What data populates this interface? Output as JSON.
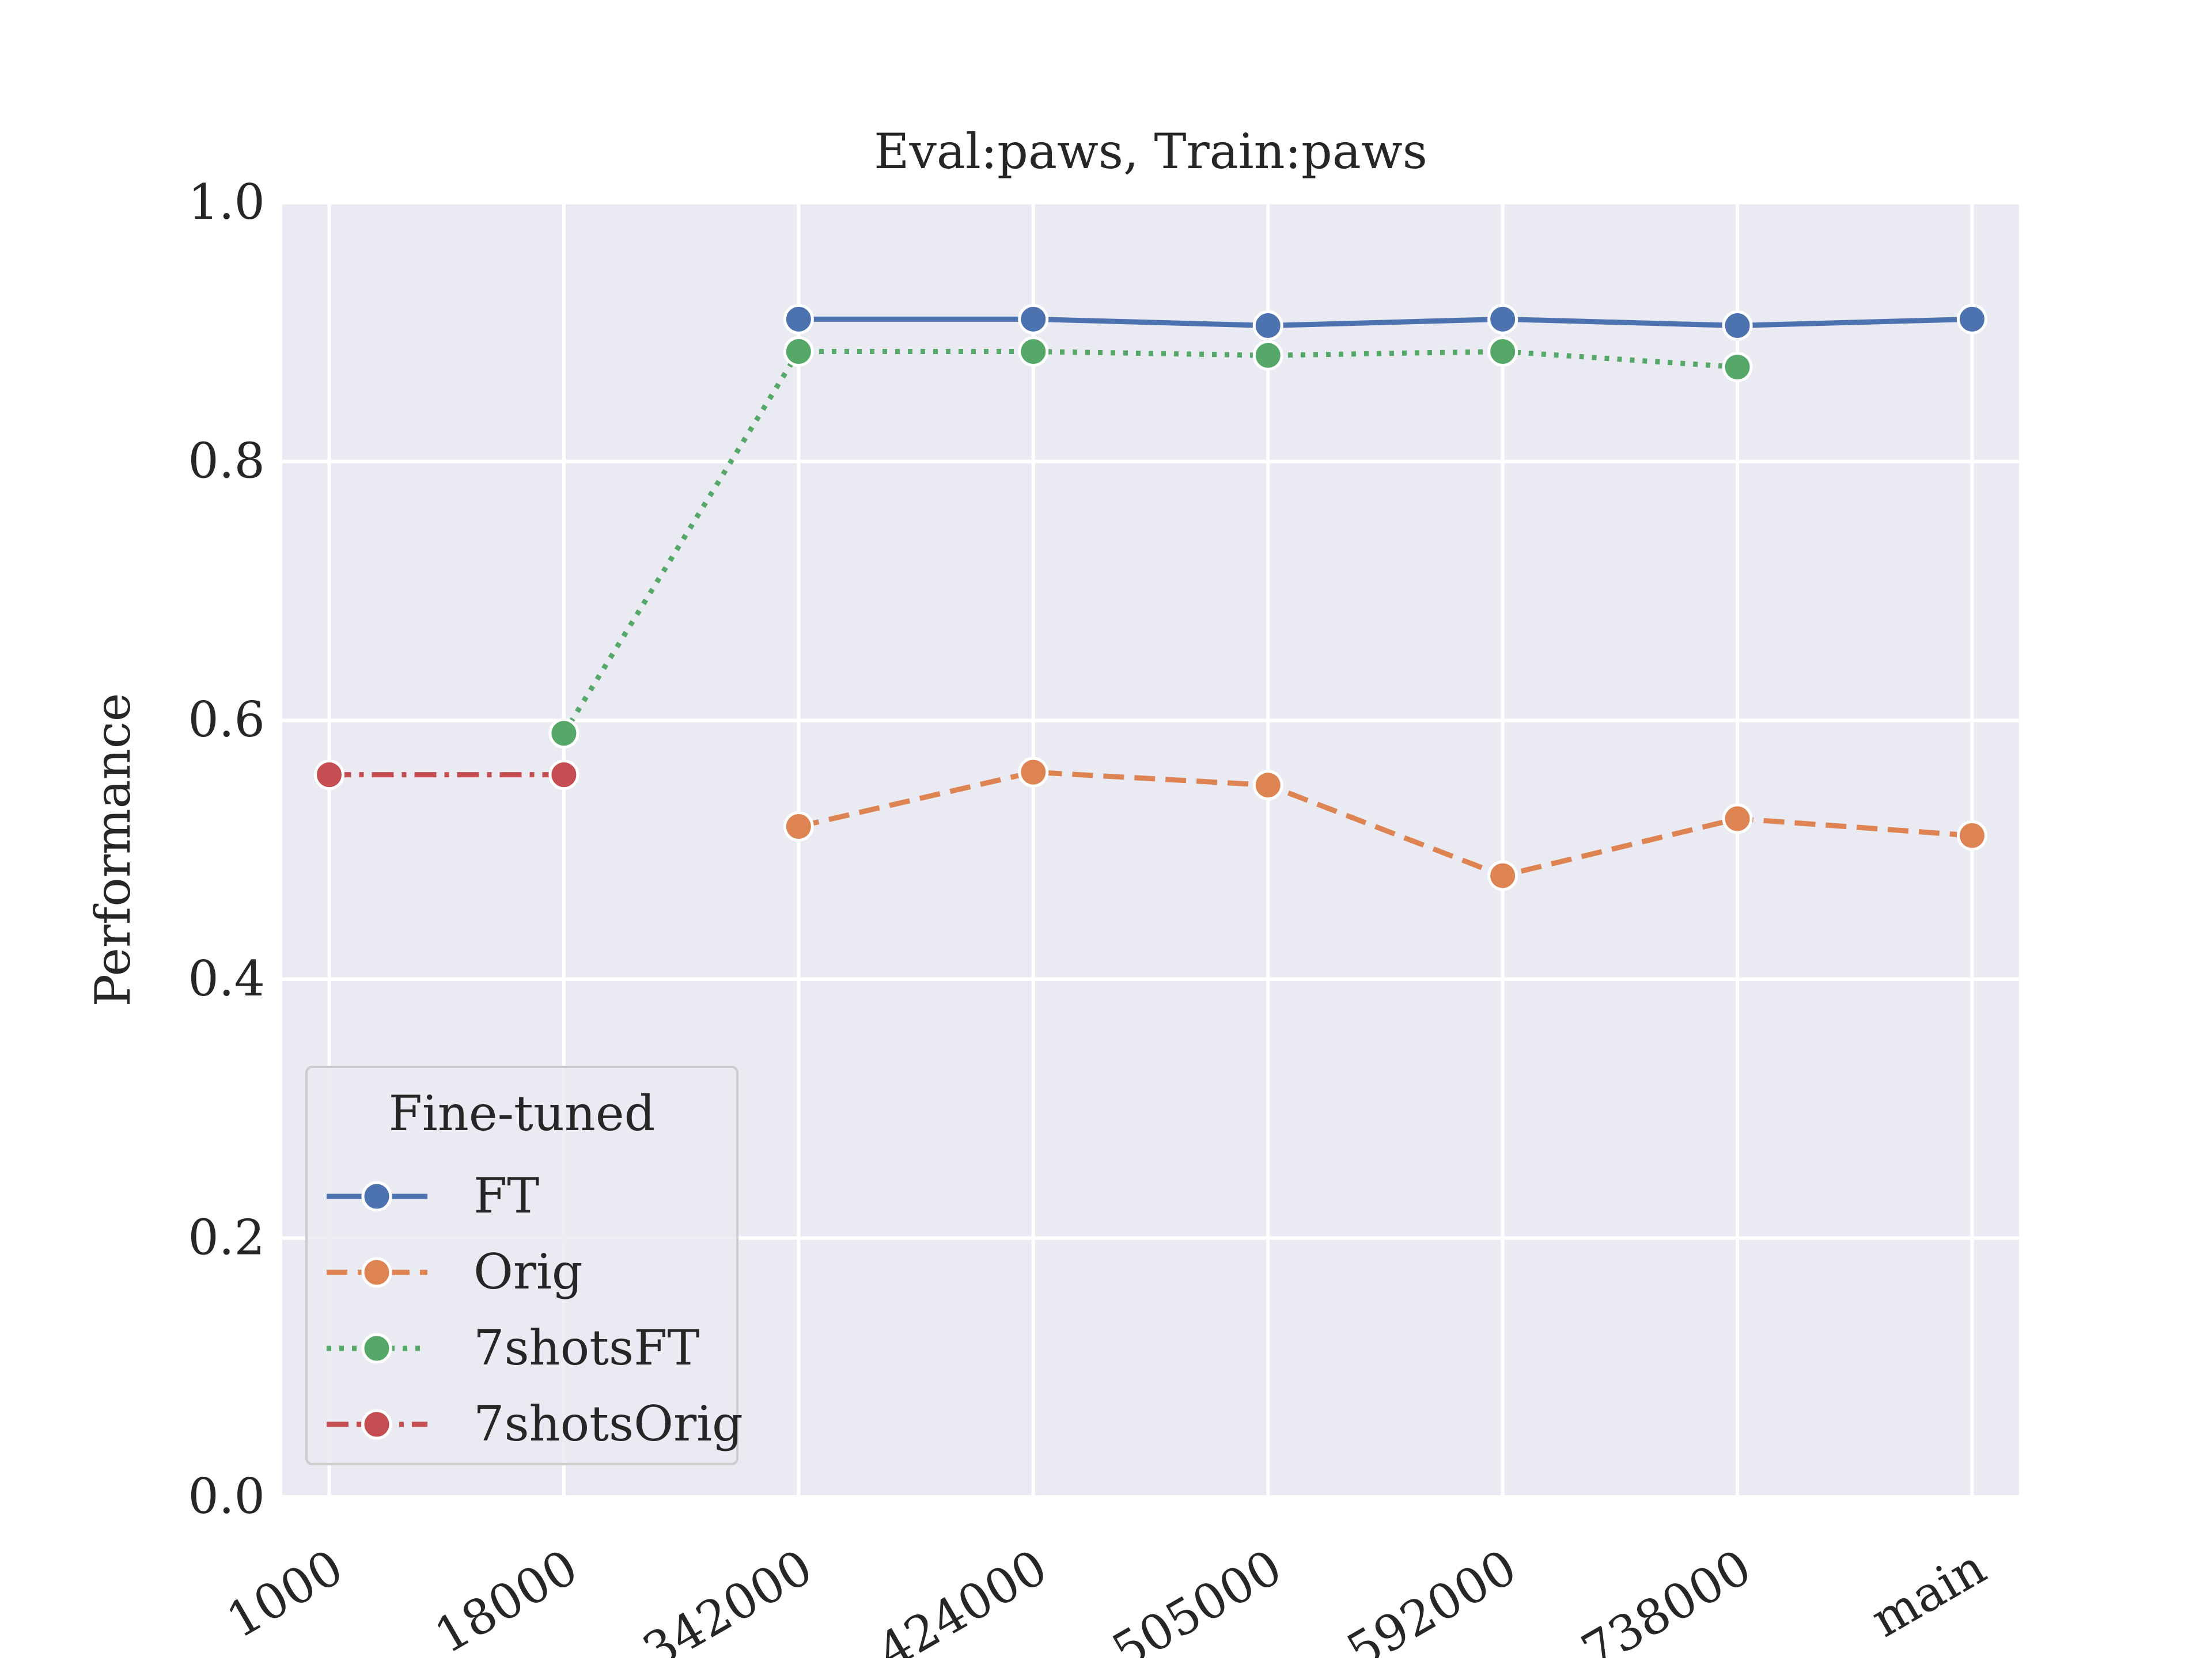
{
  "chart_data": {
    "type": "line",
    "title": "Eval:paws, Train:paws",
    "xlabel": "",
    "ylabel": "Performance",
    "categories": [
      "1000",
      "18000",
      "342000",
      "424000",
      "505000",
      "592000",
      "738000",
      "main"
    ],
    "ylim": [
      0.0,
      1.0
    ],
    "yticks": [
      0.0,
      0.2,
      0.4,
      0.6,
      0.8,
      1.0
    ],
    "ytick_labels": [
      "0.0",
      "0.2",
      "0.4",
      "0.6",
      "0.8",
      "1.0"
    ],
    "grid": true,
    "legend": {
      "title": "Fine-tuned",
      "placement": "lower-left"
    },
    "series": [
      {
        "name": "FT",
        "color": "#4c72b0",
        "dash": "solid",
        "values": [
          null,
          null,
          0.91,
          0.91,
          0.905,
          0.91,
          0.905,
          0.91
        ]
      },
      {
        "name": "Orig",
        "color": "#dd8452",
        "dash": "dashed",
        "values": [
          null,
          null,
          0.518,
          0.56,
          0.55,
          0.48,
          0.524,
          0.511
        ]
      },
      {
        "name": "7shotsFT",
        "color": "#55a868",
        "dash": "dotted",
        "values": [
          null,
          0.59,
          0.885,
          0.885,
          0.882,
          0.885,
          0.873,
          null
        ]
      },
      {
        "name": "7shotsOrig",
        "color": "#c44e52",
        "dash": "dashdot",
        "values": [
          0.558,
          0.558,
          null,
          null,
          null,
          null,
          null,
          null
        ]
      }
    ]
  }
}
